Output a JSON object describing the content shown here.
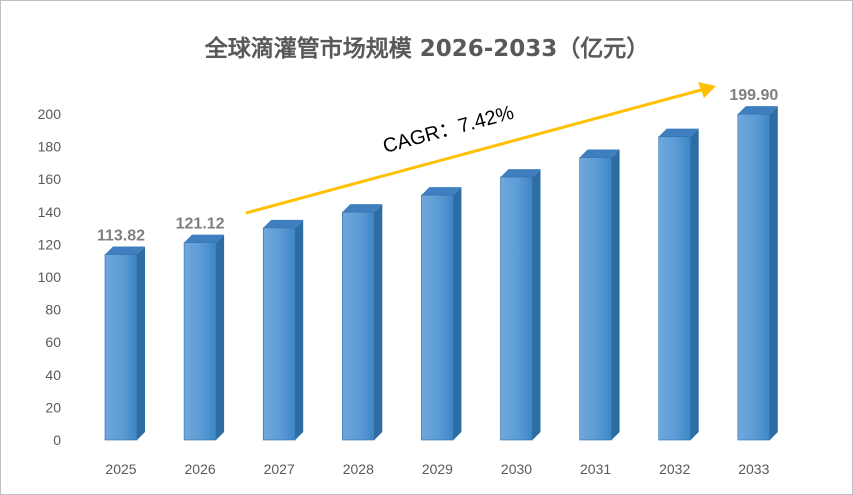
{
  "chart_data": {
    "type": "bar",
    "title": "全球滴灌管市场规模 2026-2033（亿元）",
    "categories": [
      "2025",
      "2026",
      "2027",
      "2028",
      "2029",
      "2030",
      "2031",
      "2032",
      "2033"
    ],
    "series": [
      {
        "values": [
          113.82,
          121.12,
          130.1,
          139.8,
          150.2,
          161.3,
          173.3,
          186.1,
          199.9
        ]
      }
    ],
    "data_labels": {
      "2025": "113.82",
      "2026": "121.12",
      "2033": "199.90"
    },
    "ylim": [
      0,
      200
    ],
    "yticks": [
      0,
      20,
      40,
      60,
      80,
      100,
      120,
      140,
      160,
      180,
      200
    ],
    "grid": false,
    "legend": "none",
    "annotation": "CAGR：7.42%",
    "colors": {
      "bar_front": "#5b9bd5",
      "bar_side": "#2e6da4",
      "bar_top": "#3f7fbf",
      "arrow": "#ffc000"
    }
  }
}
